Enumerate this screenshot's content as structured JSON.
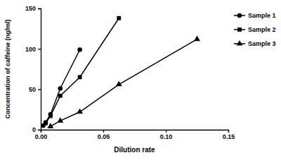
{
  "chart_data": {
    "type": "line",
    "x_label": "Dilution rate",
    "y_label": "Concentration of caffeine (ng/ml)",
    "xlim": [
      0,
      0.15
    ],
    "xticks": [
      {
        "value": 0,
        "label": "0.00"
      },
      {
        "value": 0.05,
        "label": "0.05"
      },
      {
        "value": 0.1,
        "label": "0.10"
      },
      {
        "value": 0.15,
        "label": "0.15"
      }
    ],
    "ylim": [
      0,
      150
    ],
    "yticks": [
      0,
      50,
      100,
      150
    ],
    "legend": "right",
    "series": [
      {
        "name": "Sample 1",
        "color": "#000000",
        "marker": "circle",
        "line_style": "solid",
        "x": [
          0.00195,
          0.0039,
          0.0078,
          0.0156,
          0.03125
        ],
        "values": [
          5,
          9,
          19,
          51,
          99
        ]
      },
      {
        "name": "Sample 2",
        "color": "#000000",
        "marker": "square",
        "line_style": "solid",
        "x": [
          0.0039,
          0.0078,
          0.0156,
          0.03125,
          0.0625
        ],
        "values": [
          8,
          17,
          42,
          65,
          138
        ]
      },
      {
        "name": "Sample 3",
        "color": "#000000",
        "marker": "triangle",
        "line_style": "solid",
        "x": [
          0.0078,
          0.0156,
          0.03125,
          0.0625,
          0.125
        ],
        "values": [
          4,
          11,
          22,
          56,
          112
        ]
      }
    ]
  }
}
